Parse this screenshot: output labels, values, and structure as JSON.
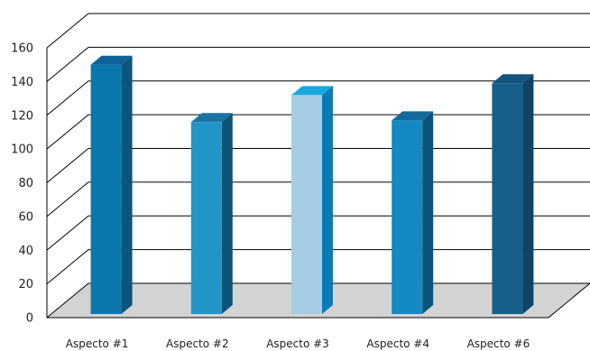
{
  "chart_data": {
    "type": "bar",
    "style": "3d-columns",
    "categories": [
      "Aspecto #1",
      "Aspecto #2",
      "Aspecto #3",
      "Aspecto #4",
      "Aspecto #6"
    ],
    "values": [
      150,
      116,
      132,
      117,
      139
    ],
    "ylim": [
      0,
      160
    ],
    "yticks": [
      "0",
      "20",
      "40",
      "60",
      "80",
      "100",
      "120",
      "140",
      "160"
    ],
    "grid": true,
    "legend": "none",
    "title": "",
    "xlabel": "",
    "ylabel": "",
    "colors": {
      "bars": [
        {
          "front": "#0a78ad",
          "side": "#0a5579",
          "top": "#10639a"
        },
        {
          "front": "#2295c7",
          "side": "#0a5579",
          "top": "#1a74a4"
        },
        {
          "front": "#a5cde3",
          "side": "#0b7ab5",
          "top": "#19a8dd"
        },
        {
          "front": "#1589c1",
          "side": "#0a5579",
          "top": "#166a99"
        },
        {
          "front": "#165f8a",
          "side": "#0e4465",
          "top": "#13557e"
        }
      ],
      "floor": "#d3d3d3",
      "grid": "#000000"
    }
  }
}
